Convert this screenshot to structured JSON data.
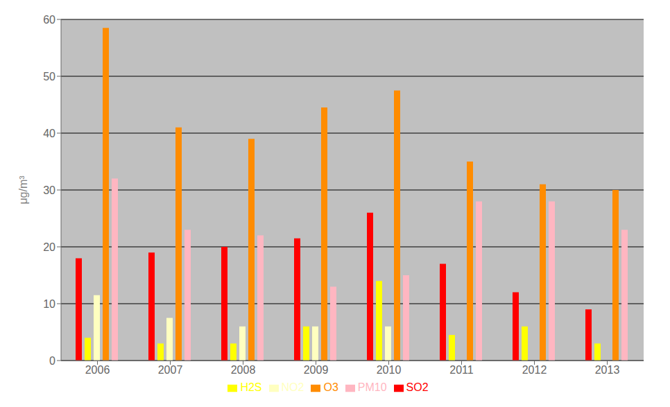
{
  "chart_data": {
    "type": "bar",
    "categories": [
      "2006",
      "2007",
      "2008",
      "2009",
      "2010",
      "2011",
      "2012",
      "2013"
    ],
    "series": [
      {
        "name": "SO2",
        "color": "#FF0000",
        "values": [
          18,
          19,
          20,
          21.5,
          26,
          17,
          12,
          9
        ]
      },
      {
        "name": "H2S",
        "color": "#FFFF00",
        "values": [
          4,
          3,
          3,
          6,
          14,
          4.5,
          6,
          3
        ]
      },
      {
        "name": "NO2",
        "color": "#FFFFC0",
        "values": [
          11.5,
          7.5,
          6,
          6,
          6,
          0,
          0,
          0
        ]
      },
      {
        "name": "O3",
        "color": "#FF8C00",
        "values": [
          58.5,
          41,
          39,
          44.5,
          47.5,
          35,
          31,
          30
        ]
      },
      {
        "name": "PM10",
        "color": "#FFB6C1",
        "values": [
          32,
          23,
          22,
          13,
          15,
          28,
          28,
          23
        ]
      }
    ],
    "ylabel": "μg/m³",
    "ylim": [
      0,
      60
    ],
    "yticks": [
      0,
      10,
      20,
      30,
      40,
      50,
      60
    ],
    "grid": true,
    "legend": "bottom"
  }
}
